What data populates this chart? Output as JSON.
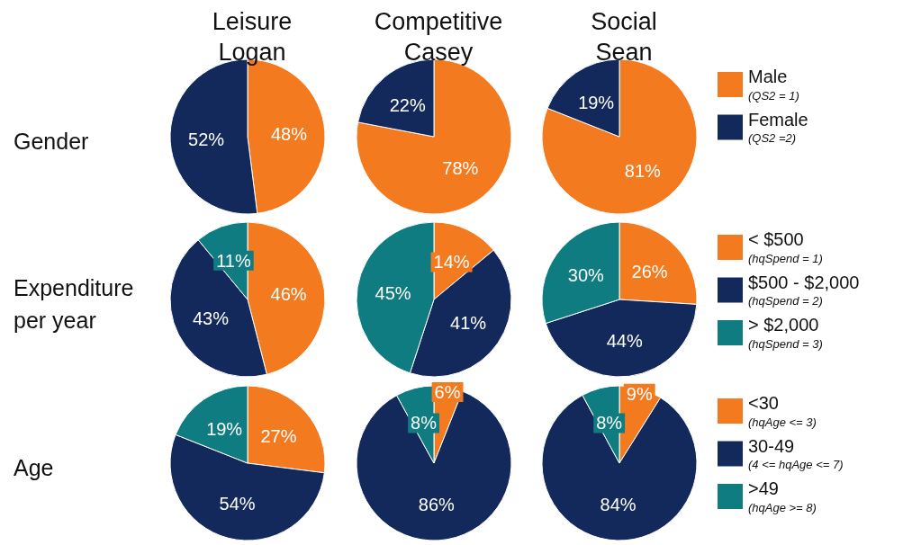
{
  "chart_data": [
    {
      "type": "pie",
      "title": "Leisure\nLogan",
      "ylabel": "Gender",
      "categories": [
        null,
        null
      ],
      "values": [
        48,
        52
      ],
      "colors": [
        "#f47a20",
        "#13285b"
      ],
      "value_labels": [
        "48%",
        "52%"
      ]
    },
    {
      "type": "pie",
      "title": "Competitive\nCasey",
      "categories": [
        null,
        null
      ],
      "values": [
        78,
        22
      ],
      "colors": [
        "#f47a20",
        "#13285b"
      ],
      "value_labels": [
        "78%",
        "22%"
      ]
    },
    {
      "type": "pie",
      "title": "Social\nSean",
      "categories": [
        "Male",
        "Female"
      ],
      "values": [
        81,
        19
      ],
      "colors": [
        "#f47a20",
        "#13285b"
      ],
      "value_labels": [
        "81%",
        "19%"
      ],
      "legend": "right",
      "annotations": [
        "(QS2 = 1)",
        "(QS2 =2)"
      ]
    },
    {
      "type": "pie",
      "ylabel": "Expenditure\nper year",
      "categories": [
        null,
        null,
        null
      ],
      "values": [
        46,
        43,
        11
      ],
      "colors": [
        "#f47a20",
        "#13285b",
        "#0e7c80"
      ],
      "value_labels": [
        "46%",
        "43%",
        "11%"
      ]
    },
    {
      "type": "pie",
      "categories": [
        null,
        null,
        null
      ],
      "values": [
        14,
        41,
        45
      ],
      "colors": [
        "#f47a20",
        "#13285b",
        "#0e7c80"
      ],
      "value_labels": [
        "14%",
        "41%",
        "45%"
      ]
    },
    {
      "type": "pie",
      "categories": [
        "< $500",
        "$500 - $2,000",
        "> $2,000"
      ],
      "values": [
        26,
        44,
        30
      ],
      "colors": [
        "#f47a20",
        "#13285b",
        "#0e7c80"
      ],
      "value_labels": [
        "26%",
        "44%",
        "30%"
      ],
      "legend": "right",
      "annotations": [
        "(hqSpend = 1)",
        "(hqSpend = 2)",
        "(hqSpend = 3)"
      ]
    },
    {
      "type": "pie",
      "ylabel": "Age",
      "categories": [
        null,
        null,
        null
      ],
      "values": [
        27,
        54,
        19
      ],
      "colors": [
        "#f47a20",
        "#13285b",
        "#0e7c80"
      ],
      "value_labels": [
        "27%",
        "54%",
        "19%"
      ]
    },
    {
      "type": "pie",
      "categories": [
        null,
        null,
        null
      ],
      "values": [
        6,
        86,
        8
      ],
      "colors": [
        "#f47a20",
        "#13285b",
        "#0e7c80"
      ],
      "value_labels": [
        "6%",
        "86%",
        "8%"
      ]
    },
    {
      "type": "pie",
      "categories": [
        "<30",
        "30-49",
        ">49"
      ],
      "values": [
        9,
        84,
        8
      ],
      "colors": [
        "#f47a20",
        "#13285b",
        "#0e7c80"
      ],
      "value_labels": [
        "9%",
        "84%",
        "8%"
      ],
      "legend": "right",
      "annotations": [
        "(hqAge <= 3)",
        "(4 <= hqAge <= 7)",
        "(hqAge >= 8)"
      ]
    }
  ]
}
